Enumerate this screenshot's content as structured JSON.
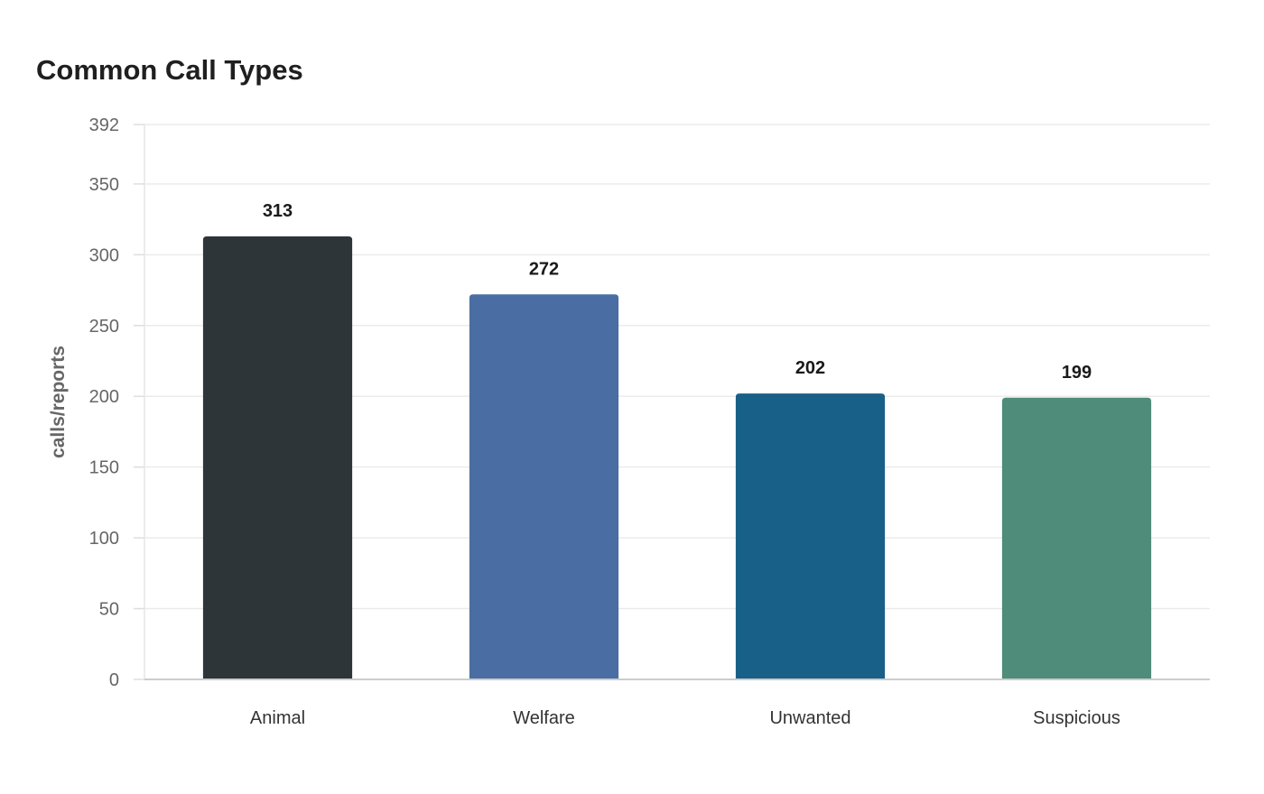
{
  "chart_data": {
    "type": "bar",
    "title": "Common Call Types",
    "ylabel": "calls/reports",
    "xlabel": "",
    "categories": [
      "Animal",
      "Welfare",
      "Unwanted",
      "Suspicious"
    ],
    "values": [
      313,
      272,
      202,
      199
    ],
    "colors": [
      "#2e3538",
      "#4a6ea3",
      "#186088",
      "#4f8c7a"
    ],
    "ylim": [
      0,
      392
    ],
    "yticks": [
      0,
      50,
      100,
      150,
      200,
      250,
      300,
      350,
      392
    ],
    "grid": true,
    "legend": "none"
  }
}
